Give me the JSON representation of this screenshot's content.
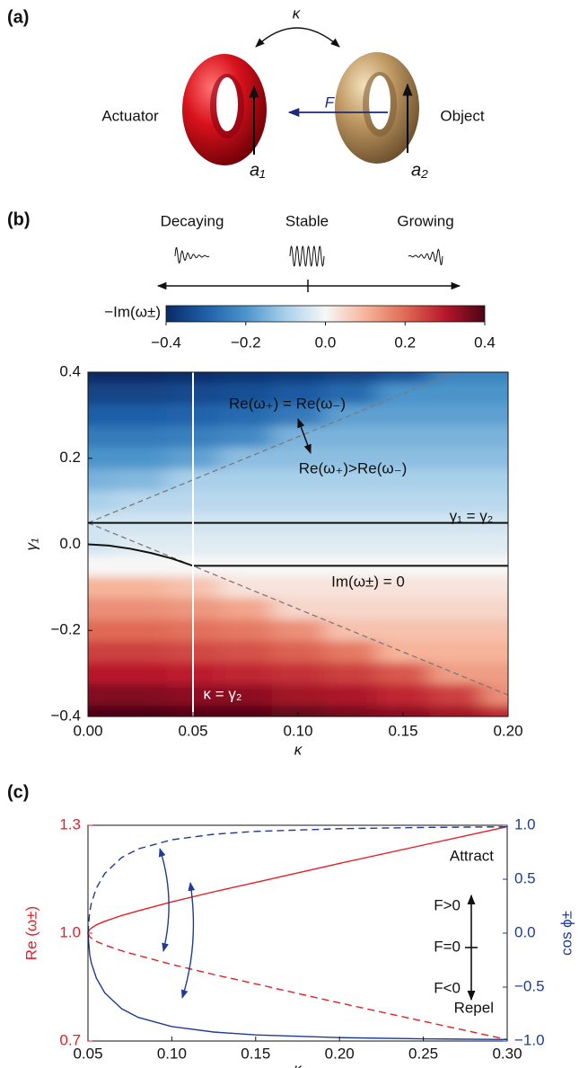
{
  "figure": {
    "panel_a": {
      "label": "(a)",
      "coupling": "κ",
      "force": "F",
      "actuator": "Actuator",
      "object": "Object",
      "mode_1": "a₁",
      "mode_2": "a₂"
    },
    "panel_b": {
      "label": "(b)",
      "regimes": [
        "Decaying",
        "Stable",
        "Growing"
      ]
    },
    "panel_c": {
      "label": "(c)"
    }
  },
  "chart_data": [
    {
      "type": "heatmap",
      "colorbar_label": "−Im(ω±)",
      "x_label": "κ",
      "y_label": "γ₁",
      "x": [
        0,
        0.025,
        0.05,
        0.075,
        0.1,
        0.125,
        0.15,
        0.175,
        0.2
      ],
      "y": [
        0.4,
        0.35,
        0.3,
        0.25,
        0.2,
        0.15,
        0.1,
        0.05,
        0,
        -0.05,
        -0.1,
        -0.15,
        -0.2,
        -0.25,
        -0.3,
        -0.35,
        -0.4
      ],
      "z": [
        [
          -0.4,
          -0.4,
          -0.39,
          -0.38,
          -0.37,
          -0.35,
          -0.32,
          -0.23,
          -0.23
        ],
        [
          -0.35,
          -0.35,
          -0.34,
          -0.33,
          -0.31,
          -0.28,
          -0.2,
          -0.2,
          -0.2
        ],
        [
          -0.3,
          -0.3,
          -0.29,
          -0.28,
          -0.25,
          -0.18,
          -0.18,
          -0.18,
          -0.18
        ],
        [
          -0.25,
          -0.25,
          -0.24,
          -0.22,
          -0.15,
          -0.15,
          -0.15,
          -0.15,
          -0.15
        ],
        [
          -0.2,
          -0.2,
          -0.18,
          -0.13,
          -0.13,
          -0.13,
          -0.13,
          -0.13,
          -0.13
        ],
        [
          -0.15,
          -0.14,
          -0.1,
          -0.1,
          -0.1,
          -0.1,
          -0.1,
          -0.1,
          -0.1
        ],
        [
          -0.1,
          -0.08,
          -0.08,
          -0.08,
          -0.08,
          -0.08,
          -0.08,
          -0.08,
          -0.08
        ],
        [
          -0.05,
          -0.05,
          -0.05,
          -0.05,
          -0.05,
          -0.05,
          -0.05,
          -0.05,
          -0.05
        ],
        [
          -0.05,
          -0.03,
          -0.03,
          -0.03,
          -0.03,
          -0.03,
          -0.03,
          -0.03,
          -0.03
        ],
        [
          0,
          0,
          0,
          0,
          0,
          0,
          0,
          0,
          0
        ],
        [
          0.1,
          0.1,
          0.08,
          0.03,
          0.03,
          0.03,
          0.03,
          0.03,
          0.03
        ],
        [
          0.15,
          0.15,
          0.14,
          0.12,
          0.05,
          0.05,
          0.05,
          0.05,
          0.05
        ],
        [
          0.2,
          0.2,
          0.19,
          0.18,
          0.15,
          0.08,
          0.08,
          0.08,
          0.08
        ],
        [
          0.25,
          0.25,
          0.24,
          0.23,
          0.21,
          0.18,
          0.1,
          0.1,
          0.1
        ],
        [
          0.3,
          0.3,
          0.29,
          0.28,
          0.27,
          0.25,
          0.22,
          0.13,
          0.13
        ],
        [
          0.35,
          0.35,
          0.34,
          0.34,
          0.32,
          0.31,
          0.28,
          0.25,
          0.15
        ],
        [
          0.4,
          0.4,
          0.39,
          0.39,
          0.38,
          0.36,
          0.34,
          0.32,
          0.28
        ]
      ],
      "clim": [
        -0.4,
        0.4
      ],
      "cticks": [
        {
          "value": -0.4,
          "label": "−0.4"
        },
        {
          "value": -0.2,
          "label": "−0.2"
        },
        {
          "value": 0,
          "label": "0.0"
        },
        0.2,
        0.4
      ],
      "colormap": [
        "#0a2a66",
        "#1f5fa8",
        "#4b94cb",
        "#a9d0ea",
        "#f7f7f7",
        "#f6b49a",
        "#e06a55",
        "#b8172b",
        "#4a0416"
      ],
      "xlim": [
        0,
        0.2
      ],
      "xticks": [
        {
          "value": 0,
          "label": "0.00"
        },
        0.05,
        {
          "value": 0.1,
          "label": "0.10"
        },
        0.15,
        {
          "value": 0.2,
          "label": "0.20"
        }
      ],
      "ylim": [
        -0.4,
        0.4
      ],
      "yticks": [
        {
          "value": -0.4,
          "label": "−0.4"
        },
        {
          "value": -0.2,
          "label": "−0.2"
        },
        {
          "value": 0,
          "label": "0.0"
        },
        0.2,
        0.4
      ],
      "lines": [
        {
          "x": [
            0,
            0.175
          ],
          "y": [
            0.05,
            0.4
          ],
          "color": "#7a7a7a",
          "dash": true
        },
        {
          "x": [
            0,
            0.2
          ],
          "y": [
            0.05,
            -0.35
          ],
          "color": "#7a7a7a",
          "dash": true
        },
        {
          "x": [
            0,
            0.2
          ],
          "y": [
            0.05,
            0.05
          ],
          "color": "#111111",
          "dash": false
        },
        {
          "x": [
            0,
            0.01,
            0.02,
            0.03,
            0.04,
            0.05,
            0.2
          ],
          "y": [
            0,
            -0.003,
            -0.01,
            -0.02,
            -0.033,
            -0.05,
            -0.05
          ],
          "color": "#111111",
          "dash": false
        },
        {
          "x": [
            0.05,
            0.05
          ],
          "y": [
            -0.4,
            0.4
          ],
          "color": "#ffffff",
          "dash": false
        }
      ],
      "annotations": [
        "Re(ω₊) = Re(ω₋)",
        "Re(ω₊)>Re(ω₋)",
        "γ₁ = γ₂",
        "Im(ω±) = 0",
        "κ = γ₂"
      ]
    },
    {
      "type": "line",
      "x_label": "κ",
      "y_label": "Re (ω±)",
      "y2_label": "cos ϕ±",
      "x": [
        0.05,
        0.051,
        0.052,
        0.055,
        0.06,
        0.07,
        0.08,
        0.1,
        0.125,
        0.15,
        0.2,
        0.25,
        0.3
      ],
      "series": [
        {
          "color": "#e41e26",
          "dash": false,
          "values": [
            1,
            1.01,
            1.014,
            1.023,
            1.033,
            1.049,
            1.062,
            1.087,
            1.115,
            1.141,
            1.194,
            1.245,
            1.296
          ]
        },
        {
          "color": "#e41e26",
          "dash": true,
          "values": [
            1,
            0.99,
            0.986,
            0.977,
            0.967,
            0.951,
            0.938,
            0.913,
            0.885,
            0.859,
            0.806,
            0.755,
            0.704
          ]
        },
        {
          "color": "#1f3b96",
          "dash": true,
          "axis": "y2",
          "values": [
            0,
            0.197,
            0.275,
            0.417,
            0.553,
            0.7,
            0.781,
            0.866,
            0.917,
            0.943,
            0.968,
            0.98,
            0.986
          ]
        },
        {
          "color": "#1f3b96",
          "dash": false,
          "axis": "y2",
          "values": [
            0,
            -0.197,
            -0.275,
            -0.417,
            -0.553,
            -0.7,
            -0.781,
            -0.866,
            -0.917,
            -0.943,
            -0.968,
            -0.98,
            -0.986
          ]
        }
      ],
      "xlim": [
        0.05,
        0.3
      ],
      "xticks": [
        0.05,
        {
          "value": 0.1,
          "label": "0.10"
        },
        0.15,
        {
          "value": 0.2,
          "label": "0.20"
        },
        0.25,
        {
          "value": 0.3,
          "label": "0.30"
        }
      ],
      "ylim": [
        0.7,
        1.3
      ],
      "yticks": [
        0.7,
        {
          "value": 1,
          "label": "1.0"
        },
        1.3
      ],
      "y_color": "#e41e26",
      "y2lim": [
        -1,
        1
      ],
      "y2ticks": [
        {
          "value": -1,
          "label": "−1.0"
        },
        {
          "value": -0.5,
          "label": "−0.5"
        },
        {
          "value": 0,
          "label": "0.0"
        },
        0.5,
        {
          "value": 1,
          "label": "1.0"
        }
      ],
      "y2_color": "#1f3b96",
      "annotations": [
        "Attract",
        "F>0",
        "F=0",
        "F<0",
        "Repel"
      ]
    }
  ]
}
